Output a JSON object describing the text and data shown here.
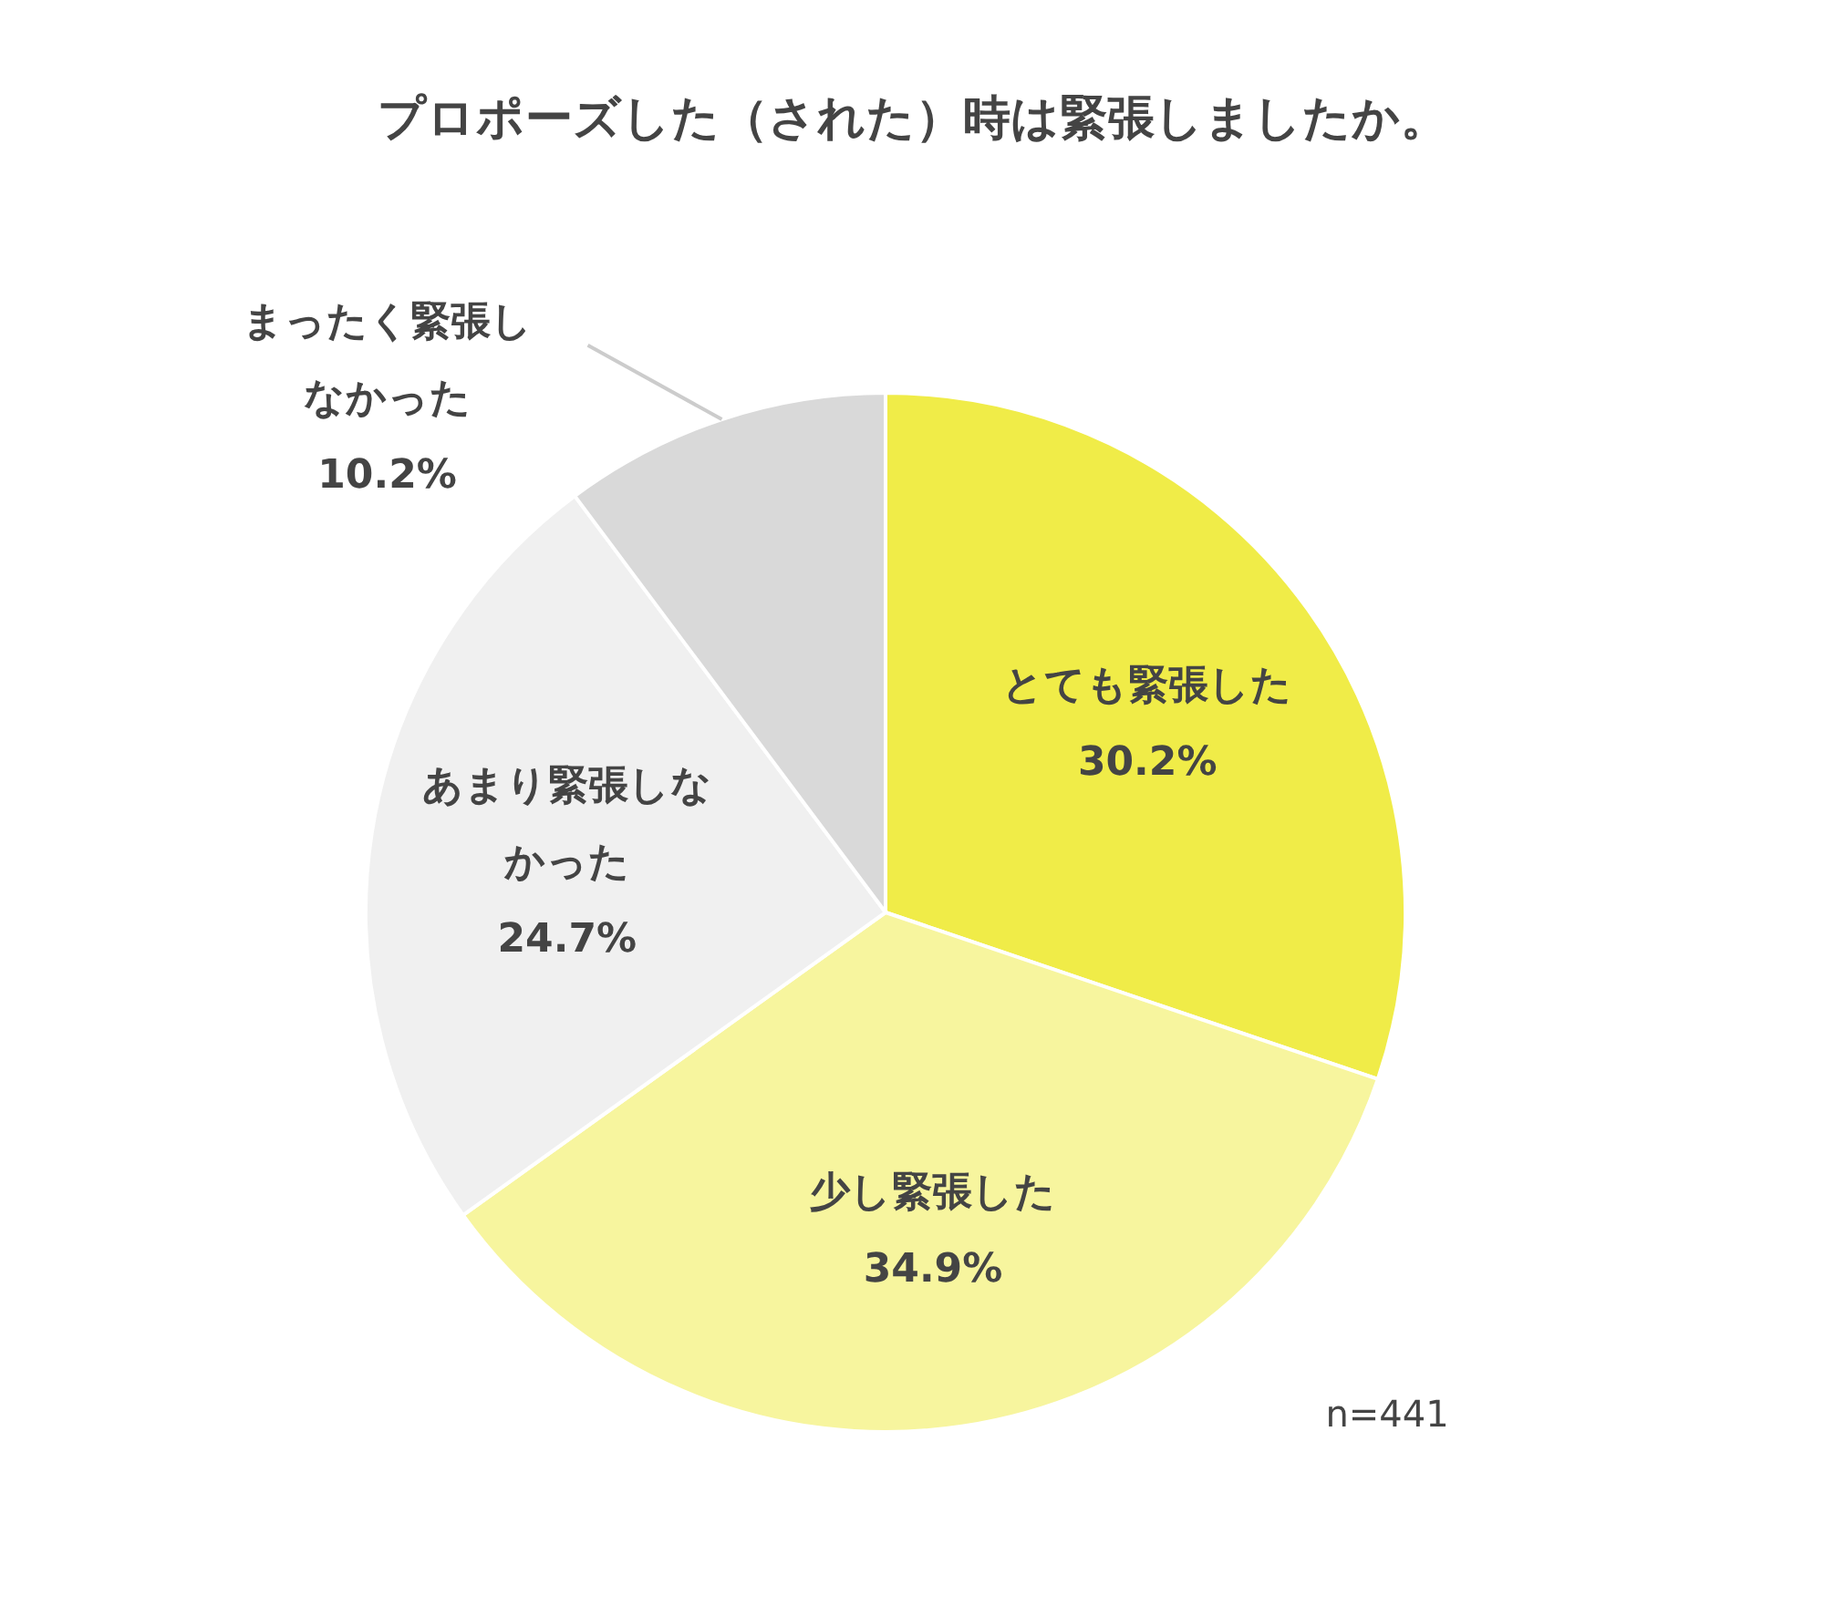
{
  "chart_data": {
    "type": "pie",
    "title": "プロポーズした（された）時は緊張しましたか。",
    "categories": [
      "とても緊張した",
      "少し緊張した",
      "あまり緊張しなかった",
      "まったく緊張しなかった"
    ],
    "values": [
      30.2,
      34.9,
      24.7,
      10.2
    ],
    "colors": [
      "#f0ec48",
      "#f7f59e",
      "#f0f0f0",
      "#d9d9d9"
    ],
    "value_labels": [
      "30.2%",
      "34.9%",
      "24.7%",
      "10.2%"
    ],
    "annotations": [
      "n=441"
    ]
  }
}
